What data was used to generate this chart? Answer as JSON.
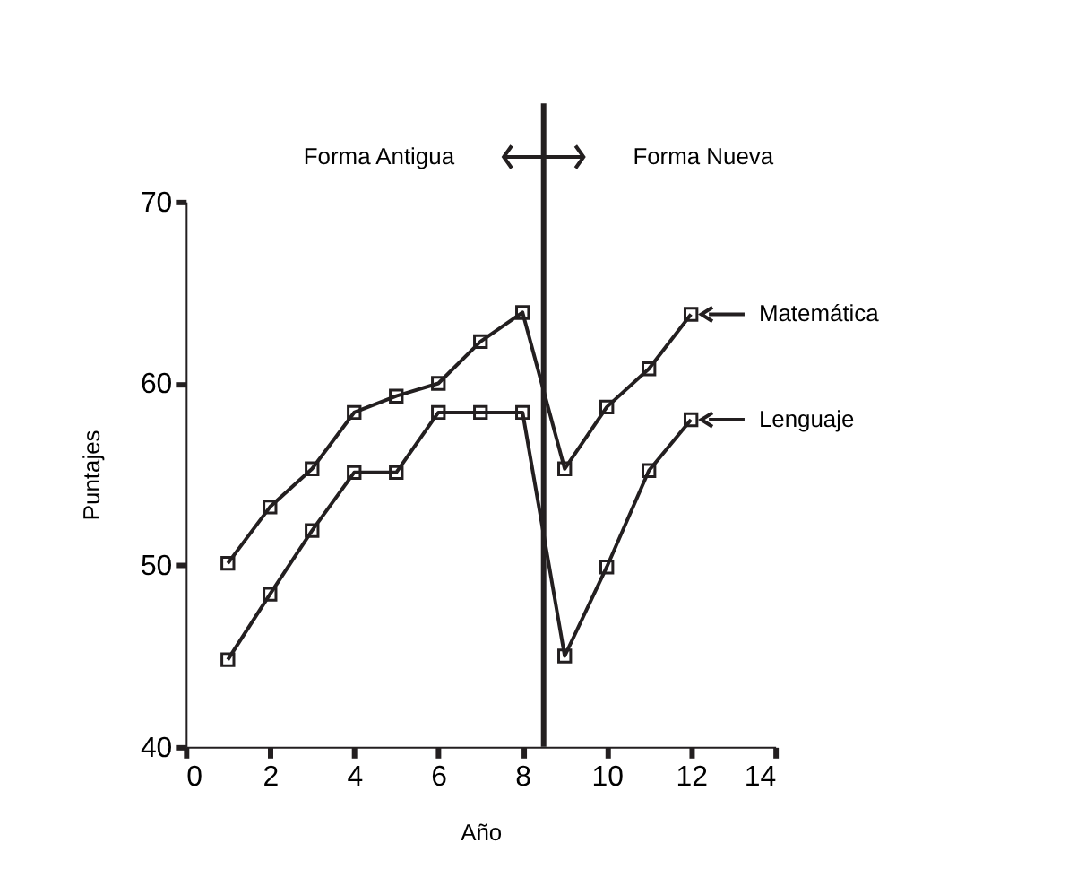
{
  "chart_data": {
    "type": "line",
    "xlabel": "Año",
    "ylabel": "Puntajes",
    "x": [
      1,
      2,
      3,
      4,
      5,
      6,
      7,
      8,
      9,
      10,
      11,
      12
    ],
    "series": [
      {
        "name": "Matemática",
        "color": "#231f20",
        "values": [
          50.1,
          53.2,
          55.3,
          58.4,
          59.3,
          60.0,
          62.3,
          63.9,
          55.3,
          58.7,
          60.8,
          63.8
        ]
      },
      {
        "name": "Lenguaje",
        "color": "#231f20",
        "values": [
          44.8,
          48.4,
          51.9,
          55.1,
          55.1,
          58.4,
          58.4,
          58.4,
          45.0,
          49.9,
          55.2,
          58.0
        ]
      }
    ],
    "xlim": [
      0,
      14
    ],
    "xticks": [
      0,
      2,
      4,
      6,
      8,
      10,
      12,
      14
    ],
    "ylim": [
      40,
      70
    ],
    "yticks": [
      40,
      50,
      60,
      70
    ],
    "ref_lines": [
      {
        "axis": "x",
        "value": 8.5,
        "color": "#231f20",
        "line_style": "solid"
      }
    ],
    "annotations": [
      "Forma Antigua",
      "Forma Nueva"
    ],
    "marker": "square",
    "line_style": "solid",
    "grid": false,
    "legend": "right"
  }
}
